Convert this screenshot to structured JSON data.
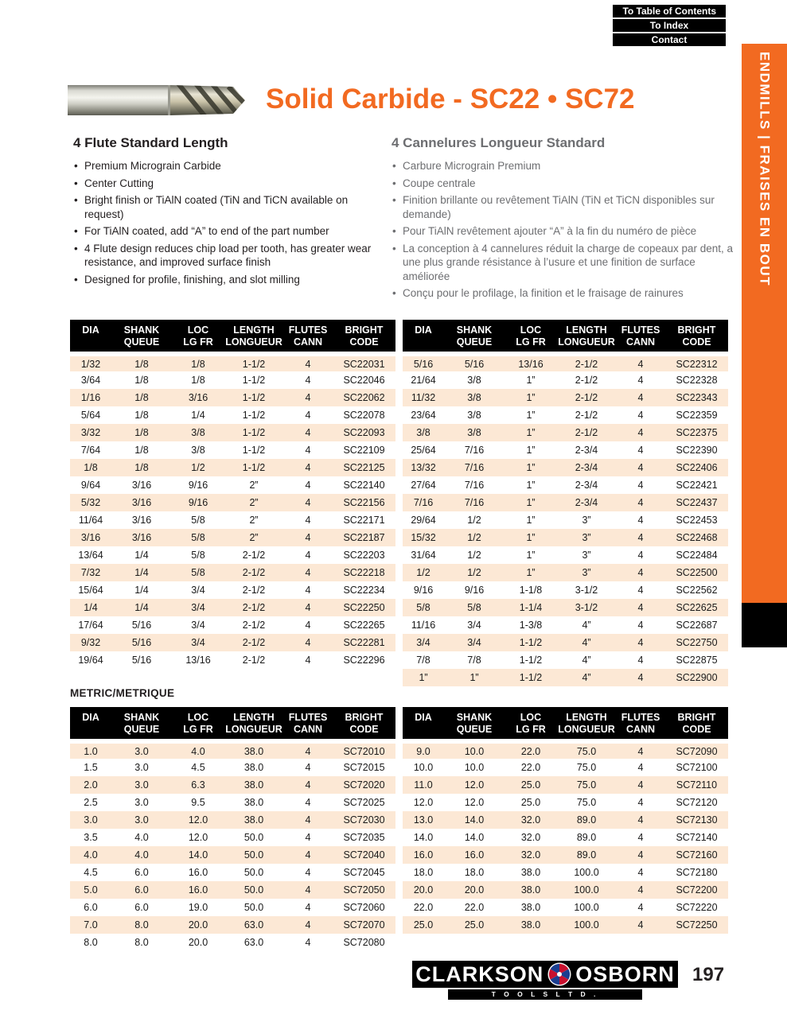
{
  "nav": {
    "to_toc": "To Table of Contents",
    "to_index": "To Index",
    "contact": "Contact"
  },
  "sidebar": {
    "label": "ENDMILLS | FRAISES EN BOUT"
  },
  "header": {
    "title": "Solid Carbide - SC22 • SC72"
  },
  "graphics": {
    "endmill_photo": "solid-carbide-4-flute-endmill"
  },
  "features_en": {
    "heading": "4 Flute Standard Length",
    "bullets": [
      "Premium Micrograin Carbide",
      "Center Cutting",
      "Bright finish or TiAlN coated (TiN and TiCN available on request)",
      "For TiAlN coated, add “A” to end of the part number",
      "4 Flute design reduces chip load per tooth, has greater wear resistance, and improved surface finish",
      "Designed for profile, finishing, and slot milling"
    ]
  },
  "features_fr": {
    "heading": "4 Cannelures Longueur Standard",
    "bullets": [
      "Carbure Micrograin Premium",
      "Coupe centrale",
      "Finition brillante ou revêtement TiAlN (TiN et TiCN disponibles sur demande)",
      "Pour TiAlN revêtement ajouter “A” à la fin du numéro de pièce",
      "La conception à 4 cannelures réduit la charge de copeaux par dent, a une plus grande résistance à l’usure et une finition de surface améliorée",
      "Conçu pour le profilage, la finition et le fraisage de rainures"
    ]
  },
  "tables": {
    "headers": [
      [
        "DIA",
        ""
      ],
      [
        "SHANK",
        "QUEUE"
      ],
      [
        "LOC",
        "LG FR"
      ],
      [
        "LENGTH",
        "LONGUEUR"
      ],
      [
        "FLUTES",
        "CANN"
      ],
      [
        "BRIGHT",
        "CODE"
      ]
    ],
    "metric_label": "METRIC/METRIQUE",
    "inch_left": [
      [
        "1/32",
        "1/8",
        "1/8",
        "1-1/2",
        "4",
        "SC22031"
      ],
      [
        "3/64",
        "1/8",
        "1/8",
        "1-1/2",
        "4",
        "SC22046"
      ],
      [
        "1/16",
        "1/8",
        "3/16",
        "1-1/2",
        "4",
        "SC22062"
      ],
      [
        "5/64",
        "1/8",
        "1/4",
        "1-1/2",
        "4",
        "SC22078"
      ],
      [
        "3/32",
        "1/8",
        "3/8",
        "1-1/2",
        "4",
        "SC22093"
      ],
      [
        "7/64",
        "1/8",
        "3/8",
        "1-1/2",
        "4",
        "SC22109"
      ],
      [
        "1/8",
        "1/8",
        "1/2",
        "1-1/2",
        "4",
        "SC22125"
      ],
      [
        "9/64",
        "3/16",
        "9/16",
        "2”",
        "4",
        "SC22140"
      ],
      [
        "5/32",
        "3/16",
        "9/16",
        "2”",
        "4",
        "SC22156"
      ],
      [
        "11/64",
        "3/16",
        "5/8",
        "2”",
        "4",
        "SC22171"
      ],
      [
        "3/16",
        "3/16",
        "5/8",
        "2”",
        "4",
        "SC22187"
      ],
      [
        "13/64",
        "1/4",
        "5/8",
        "2-1/2",
        "4",
        "SC22203"
      ],
      [
        "7/32",
        "1/4",
        "5/8",
        "2-1/2",
        "4",
        "SC22218"
      ],
      [
        "15/64",
        "1/4",
        "3/4",
        "2-1/2",
        "4",
        "SC22234"
      ],
      [
        "1/4",
        "1/4",
        "3/4",
        "2-1/2",
        "4",
        "SC22250"
      ],
      [
        "17/64",
        "5/16",
        "3/4",
        "2-1/2",
        "4",
        "SC22265"
      ],
      [
        "9/32",
        "5/16",
        "3/4",
        "2-1/2",
        "4",
        "SC22281"
      ],
      [
        "19/64",
        "5/16",
        "13/16",
        "2-1/2",
        "4",
        "SC22296"
      ]
    ],
    "inch_right": [
      [
        "5/16",
        "5/16",
        "13/16",
        "2-1/2",
        "4",
        "SC22312"
      ],
      [
        "21/64",
        "3/8",
        "1”",
        "2-1/2",
        "4",
        "SC22328"
      ],
      [
        "11/32",
        "3/8",
        "1”",
        "2-1/2",
        "4",
        "SC22343"
      ],
      [
        "23/64",
        "3/8",
        "1”",
        "2-1/2",
        "4",
        "SC22359"
      ],
      [
        "3/8",
        "3/8",
        "1”",
        "2-1/2",
        "4",
        "SC22375"
      ],
      [
        "25/64",
        "7/16",
        "1”",
        "2-3/4",
        "4",
        "SC22390"
      ],
      [
        "13/32",
        "7/16",
        "1”",
        "2-3/4",
        "4",
        "SC22406"
      ],
      [
        "27/64",
        "7/16",
        "1”",
        "2-3/4",
        "4",
        "SC22421"
      ],
      [
        "7/16",
        "7/16",
        "1”",
        "2-3/4",
        "4",
        "SC22437"
      ],
      [
        "29/64",
        "1/2",
        "1”",
        "3”",
        "4",
        "SC22453"
      ],
      [
        "15/32",
        "1/2",
        "1”",
        "3”",
        "4",
        "SC22468"
      ],
      [
        "31/64",
        "1/2",
        "1”",
        "3”",
        "4",
        "SC22484"
      ],
      [
        "1/2",
        "1/2",
        "1”",
        "3”",
        "4",
        "SC22500"
      ],
      [
        "9/16",
        "9/16",
        "1-1/8",
        "3-1/2",
        "4",
        "SC22562"
      ],
      [
        "5/8",
        "5/8",
        "1-1/4",
        "3-1/2",
        "4",
        "SC22625"
      ],
      [
        "11/16",
        "3/4",
        "1-3/8",
        "4”",
        "4",
        "SC22687"
      ],
      [
        "3/4",
        "3/4",
        "1-1/2",
        "4”",
        "4",
        "SC22750"
      ],
      [
        "7/8",
        "7/8",
        "1-1/2",
        "4”",
        "4",
        "SC22875"
      ],
      [
        "1”",
        "1”",
        "1-1/2",
        "4”",
        "4",
        "SC22900"
      ]
    ],
    "metric_left": [
      [
        "1.0",
        "3.0",
        "4.0",
        "38.0",
        "4",
        "SC72010"
      ],
      [
        "1.5",
        "3.0",
        "4.5",
        "38.0",
        "4",
        "SC72015"
      ],
      [
        "2.0",
        "3.0",
        "6.3",
        "38.0",
        "4",
        "SC72020"
      ],
      [
        "2.5",
        "3.0",
        "9.5",
        "38.0",
        "4",
        "SC72025"
      ],
      [
        "3.0",
        "3.0",
        "12.0",
        "38.0",
        "4",
        "SC72030"
      ],
      [
        "3.5",
        "4.0",
        "12.0",
        "50.0",
        "4",
        "SC72035"
      ],
      [
        "4.0",
        "4.0",
        "14.0",
        "50.0",
        "4",
        "SC72040"
      ],
      [
        "4.5",
        "6.0",
        "16.0",
        "50.0",
        "4",
        "SC72045"
      ],
      [
        "5.0",
        "6.0",
        "16.0",
        "50.0",
        "4",
        "SC72050"
      ],
      [
        "6.0",
        "6.0",
        "19.0",
        "50.0",
        "4",
        "SC72060"
      ],
      [
        "7.0",
        "8.0",
        "20.0",
        "63.0",
        "4",
        "SC72070"
      ],
      [
        "8.0",
        "8.0",
        "20.0",
        "63.0",
        "4",
        "SC72080"
      ]
    ],
    "metric_right": [
      [
        "9.0",
        "10.0",
        "22.0",
        "75.0",
        "4",
        "SC72090"
      ],
      [
        "10.0",
        "10.0",
        "22.0",
        "75.0",
        "4",
        "SC72100"
      ],
      [
        "11.0",
        "12.0",
        "25.0",
        "75.0",
        "4",
        "SC72110"
      ],
      [
        "12.0",
        "12.0",
        "25.0",
        "75.0",
        "4",
        "SC72120"
      ],
      [
        "13.0",
        "14.0",
        "32.0",
        "89.0",
        "4",
        "SC72130"
      ],
      [
        "14.0",
        "14.0",
        "32.0",
        "89.0",
        "4",
        "SC72140"
      ],
      [
        "16.0",
        "16.0",
        "32.0",
        "89.0",
        "4",
        "SC72160"
      ],
      [
        "18.0",
        "18.0",
        "38.0",
        "100.0",
        "4",
        "SC72180"
      ],
      [
        "20.0",
        "20.0",
        "38.0",
        "100.0",
        "4",
        "SC72200"
      ],
      [
        "22.0",
        "22.0",
        "38.0",
        "100.0",
        "4",
        "SC72220"
      ],
      [
        "25.0",
        "25.0",
        "38.0",
        "100.0",
        "4",
        "SC72250"
      ]
    ]
  },
  "footer": {
    "brand_left": "CLARKSON",
    "brand_right": "OSBORN",
    "brand_sub": "T O O L S   L T D .",
    "page_number": "197"
  },
  "colors": {
    "accent_orange": "#F26A21",
    "row_tint": "#FCE8D5",
    "gray_text": "#6D6E71"
  }
}
